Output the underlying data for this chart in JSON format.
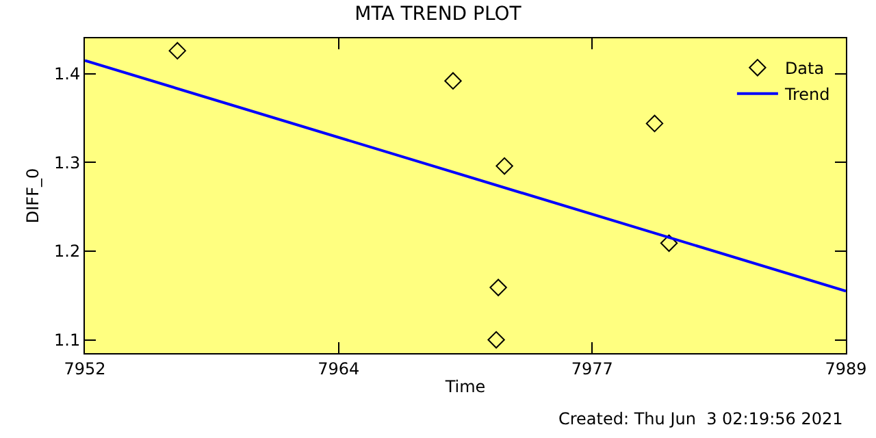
{
  "chart_data": {
    "type": "scatter",
    "title": "MTA TREND PLOT",
    "xlabel": "Time",
    "ylabel": "DIFF_0",
    "annotations": [
      "Created: Thu Jun  3 02:19:56 2021"
    ],
    "xlim": [
      7952,
      7989
    ],
    "xticks": [
      7952,
      {
        "value": 7964.333,
        "label": "7964"
      },
      {
        "value": 7976.667,
        "label": "7977"
      },
      7989
    ],
    "ylim": [
      1.085,
      1.44
    ],
    "yticks": [
      1.1,
      1.2,
      1.3,
      1.4
    ],
    "series": [
      {
        "name": "Data",
        "type": "scatter",
        "color": "#000000",
        "marker": "diamond",
        "x": [
          7956.5,
          7969.9,
          7972.0,
          7972.1,
          7972.4,
          7979.7,
          7980.4
        ],
        "values": [
          1.426,
          1.392,
          1.1,
          1.159,
          1.296,
          1.344,
          1.209
        ]
      },
      {
        "name": "Trend",
        "type": "line",
        "color": "#0000ff",
        "marker": "none",
        "line_style": "solid",
        "x": [
          7952,
          7989
        ],
        "values": [
          1.415,
          1.155
        ]
      }
    ],
    "grid": false,
    "legend": "top right"
  }
}
